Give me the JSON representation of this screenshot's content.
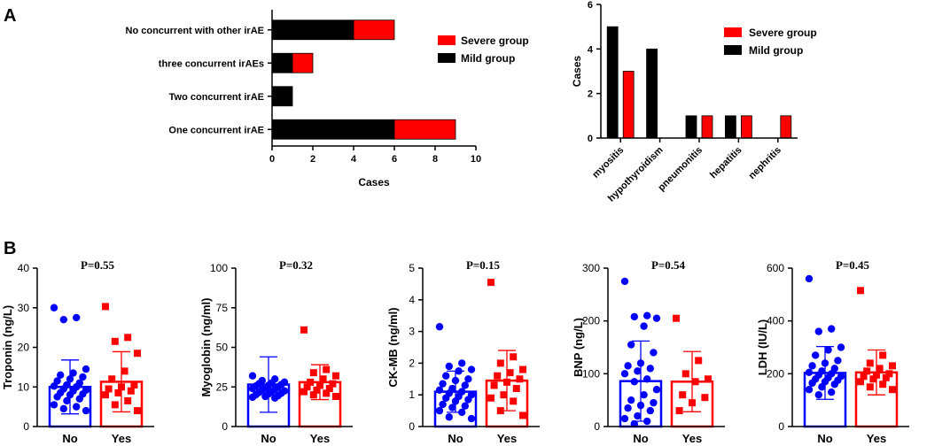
{
  "panel_labels": {
    "a": "A",
    "b": "B"
  },
  "colors": {
    "severe": "#ff0000",
    "mild": "#000000",
    "no": "#0000ff",
    "yes": "#ff0000",
    "axis": "#000000"
  },
  "chart_data": [
    {
      "id": "A1",
      "type": "bar",
      "orientation": "horizontal",
      "stacked": true,
      "categories": [
        "No concurrent with other irAE",
        "three concurrent irAEs",
        "Two concurrent irAE",
        "One concurrent irAE"
      ],
      "series": [
        {
          "name": "Mild group",
          "color": "#000000",
          "values": [
            4,
            1,
            1,
            6
          ]
        },
        {
          "name": "Severe group",
          "color": "#ff0000",
          "values": [
            2,
            1,
            0,
            3
          ]
        }
      ],
      "legend": [
        {
          "label": "Severe group",
          "color": "#ff0000"
        },
        {
          "label": "Mild group",
          "color": "#000000"
        }
      ],
      "xlabel": "Cases",
      "xlim": [
        0,
        10
      ],
      "xticks": [
        "0",
        "2",
        "4",
        "6",
        "8",
        "10"
      ],
      "xtick_values": [
        0,
        2,
        4,
        6,
        8,
        10
      ]
    },
    {
      "id": "A2",
      "type": "bar",
      "orientation": "vertical",
      "grouped": true,
      "categories": [
        "myositis",
        "hypothyroidism",
        "pneumonitis",
        "hepatitis",
        "nephritis"
      ],
      "series": [
        {
          "name": "Mild group",
          "color": "#000000",
          "values": [
            5,
            4,
            1,
            1,
            0
          ]
        },
        {
          "name": "Severe group",
          "color": "#ff0000",
          "values": [
            3,
            0,
            1,
            1,
            1
          ]
        }
      ],
      "legend": [
        {
          "label": "Severe group",
          "color": "#ff0000"
        },
        {
          "label": "Mild group",
          "color": "#000000"
        }
      ],
      "ylabel": "Cases",
      "ylim": [
        0,
        6
      ],
      "yticks": [
        "0",
        "2",
        "4",
        "6"
      ],
      "ytick_values": [
        0,
        2,
        4,
        6
      ]
    },
    {
      "id": "B1",
      "type": "scatter-bar",
      "title": "P=0.55",
      "ylabel": "Troponin (ng/L)",
      "ylim": [
        0,
        40
      ],
      "yticks": [
        "0",
        "10",
        "20",
        "30",
        "40"
      ],
      "ytick_values": [
        0,
        10,
        20,
        30,
        40
      ],
      "categories": [
        "No",
        "Yes"
      ],
      "groups": [
        {
          "name": "No",
          "mean": 10.0,
          "sd": 6.8,
          "points": [
            30.0,
            27.5,
            27.0,
            14.5,
            13.5,
            13.0,
            12.5,
            12.0,
            11.5,
            11.0,
            10.5,
            10.2,
            10.0,
            9.5,
            9.2,
            9.0,
            8.5,
            8.2,
            8.0,
            7.5,
            7.0,
            6.5,
            5.5,
            5.0,
            4.5,
            4.0
          ]
        },
        {
          "name": "Yes",
          "mean": 11.3,
          "sd": 7.6,
          "points": [
            30.3,
            22.5,
            21.5,
            18.5,
            14.0,
            12.0,
            10.5,
            10.0,
            9.5,
            9.0,
            8.5,
            8.0,
            6.5,
            5.5,
            4.0
          ]
        }
      ]
    },
    {
      "id": "B2",
      "type": "scatter-bar",
      "title": "P=0.32",
      "ylabel": "Myoglobin (ng/ml)",
      "ylim": [
        0,
        100
      ],
      "yticks": [
        "0",
        "25",
        "50",
        "75",
        "100"
      ],
      "ytick_values": [
        0,
        25,
        50,
        75,
        100
      ],
      "categories": [
        "No",
        "Yes"
      ],
      "groups": [
        {
          "name": "No",
          "mean": 26.5,
          "sd": 17.5,
          "points": [
            32,
            30,
            29,
            28,
            27.5,
            27,
            26.5,
            26,
            25.5,
            25,
            24.5,
            24,
            23.5,
            23,
            22.5,
            22,
            21.5,
            21,
            20.5,
            20,
            19.5,
            19,
            18.5,
            18
          ]
        },
        {
          "name": "Yes",
          "mean": 28.0,
          "sd": 11.0,
          "points": [
            61,
            36,
            34,
            32,
            30,
            28,
            27,
            26,
            25,
            24,
            23,
            22,
            21,
            20,
            19
          ]
        }
      ]
    },
    {
      "id": "B3",
      "type": "scatter-bar",
      "title": "P=0.15",
      "ylabel": "CK-MB (ng/ml)",
      "ylim": [
        0,
        5
      ],
      "yticks": [
        "0",
        "1",
        "2",
        "3",
        "4",
        "5"
      ],
      "ytick_values": [
        0,
        1,
        2,
        3,
        4,
        5
      ],
      "categories": [
        "No",
        "Yes"
      ],
      "groups": [
        {
          "name": "No",
          "mean": 1.1,
          "sd": 0.65,
          "points": [
            3.15,
            2.0,
            1.9,
            1.8,
            1.75,
            1.6,
            1.5,
            1.45,
            1.35,
            1.3,
            1.2,
            1.15,
            1.1,
            1.05,
            1.0,
            0.95,
            0.9,
            0.85,
            0.8,
            0.7,
            0.65,
            0.6,
            0.5,
            0.45,
            0.3,
            0.25
          ]
        },
        {
          "name": "Yes",
          "mean": 1.45,
          "sd": 0.95,
          "points": [
            4.55,
            2.2,
            2.0,
            1.8,
            1.7,
            1.6,
            1.5,
            1.4,
            1.3,
            1.2,
            1.0,
            0.9,
            0.8,
            0.5,
            0.35
          ]
        }
      ]
    },
    {
      "id": "B4",
      "type": "scatter-bar",
      "title": "P=0.54",
      "ylabel": "BNP (ng/L)",
      "ylim": [
        0,
        300
      ],
      "yticks": [
        "0",
        "100",
        "200",
        "300"
      ],
      "ytick_values": [
        0,
        100,
        200,
        300
      ],
      "categories": [
        "No",
        "Yes"
      ],
      "groups": [
        {
          "name": "No",
          "mean": 86,
          "sd": 76,
          "points": [
            275,
            210,
            208,
            205,
            190,
            155,
            140,
            120,
            115,
            110,
            105,
            100,
            90,
            85,
            70,
            60,
            50,
            45,
            40,
            35,
            30,
            20,
            15,
            10,
            5
          ]
        },
        {
          "name": "Yes",
          "mean": 85,
          "sd": 57,
          "points": [
            205,
            125,
            100,
            90,
            85,
            60,
            55,
            45,
            30
          ]
        }
      ]
    },
    {
      "id": "B5",
      "type": "scatter-bar",
      "title": "P=0.45",
      "ylabel": "LDH (IU/L)",
      "ylim": [
        0,
        600
      ],
      "yticks": [
        "0",
        "200",
        "400",
        "600"
      ],
      "ytick_values": [
        0,
        200,
        400,
        600
      ],
      "categories": [
        "No",
        "Yes"
      ],
      "groups": [
        {
          "name": "No",
          "mean": 203,
          "sd": 100,
          "points": [
            560,
            370,
            360,
            300,
            290,
            270,
            250,
            240,
            230,
            220,
            210,
            205,
            200,
            195,
            190,
            185,
            180,
            175,
            170,
            165,
            160,
            150,
            140,
            130,
            120
          ]
        },
        {
          "name": "Yes",
          "mean": 205,
          "sd": 85,
          "points": [
            515,
            270,
            240,
            230,
            220,
            210,
            200,
            195,
            190,
            185,
            180,
            170,
            160,
            150,
            140
          ]
        }
      ]
    }
  ]
}
